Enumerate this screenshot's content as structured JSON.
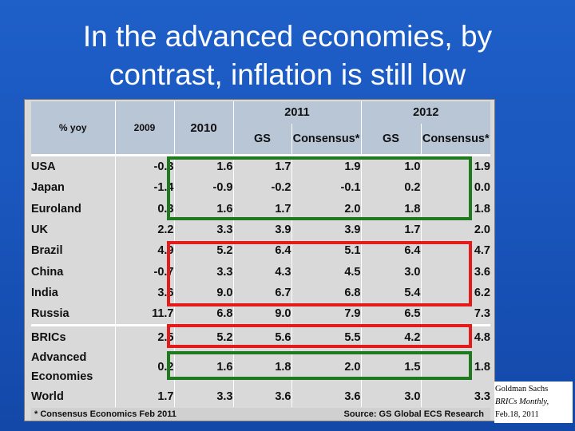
{
  "slide": {
    "title_line1": "In the advanced economies, by",
    "title_line2": "contrast, inflation is still low"
  },
  "table": {
    "header_label": "% yoy",
    "col_2009": "2009",
    "col_2010": "2010",
    "group_2011": "2011",
    "group_2012": "2012",
    "sub_gs": "GS",
    "sub_consensus": "Consensus*",
    "rows": [
      {
        "label": "USA",
        "v2009": "-0.3",
        "v2010": "1.6",
        "gs2011": "1.7",
        "con2011": "1.9",
        "gs2012": "1.0",
        "con2012": "1.9"
      },
      {
        "label": "Japan",
        "v2009": "-1.4",
        "v2010": "-0.9",
        "gs2011": "-0.2",
        "con2011": "-0.1",
        "gs2012": "0.2",
        "con2012": "0.0"
      },
      {
        "label": "Euroland",
        "v2009": "0.3",
        "v2010": "1.6",
        "gs2011": "1.7",
        "con2011": "2.0",
        "gs2012": "1.8",
        "con2012": "1.8"
      },
      {
        "label": "UK",
        "v2009": "2.2",
        "v2010": "3.3",
        "gs2011": "3.9",
        "con2011": "3.9",
        "gs2012": "1.7",
        "con2012": "2.0"
      },
      {
        "label": "Brazil",
        "v2009": "4.9",
        "v2010": "5.2",
        "gs2011": "6.4",
        "con2011": "5.1",
        "gs2012": "6.4",
        "con2012": "4.7"
      },
      {
        "label": "China",
        "v2009": "-0.7",
        "v2010": "3.3",
        "gs2011": "4.3",
        "con2011": "4.5",
        "gs2012": "3.0",
        "con2012": "3.6"
      },
      {
        "label": "India",
        "v2009": "3.6",
        "v2010": "9.0",
        "gs2011": "6.7",
        "con2011": "6.8",
        "gs2012": "5.4",
        "con2012": "6.2"
      },
      {
        "label": "Russia",
        "v2009": "11.7",
        "v2010": "6.8",
        "gs2011": "9.0",
        "con2011": "7.9",
        "gs2012": "6.5",
        "con2012": "7.3"
      },
      {
        "label": "BRICs",
        "v2009": "2.5",
        "v2010": "5.2",
        "gs2011": "5.6",
        "con2011": "5.5",
        "gs2012": "4.2",
        "con2012": "4.8"
      },
      {
        "label_line1": "Advanced",
        "label_line2": "Economies",
        "v2009": "0.2",
        "v2010": "1.6",
        "gs2011": "1.8",
        "con2011": "2.0",
        "gs2012": "1.5",
        "con2012": "1.8"
      },
      {
        "label": "World",
        "v2009": "1.7",
        "v2010": "3.3",
        "gs2011": "3.6",
        "con2011": "3.6",
        "gs2012": "3.0",
        "con2012": "3.3"
      }
    ],
    "footnote": "* Consensus Economics Feb 2011",
    "source": "Source: GS Global ECS Research"
  },
  "highlights": {
    "green": "#1f7a1f",
    "red": "#e31b1b"
  },
  "citation": {
    "line1": "Goldman Sachs",
    "line2": "BRICs Monthly,",
    "line3": "Feb.18, 2011"
  }
}
